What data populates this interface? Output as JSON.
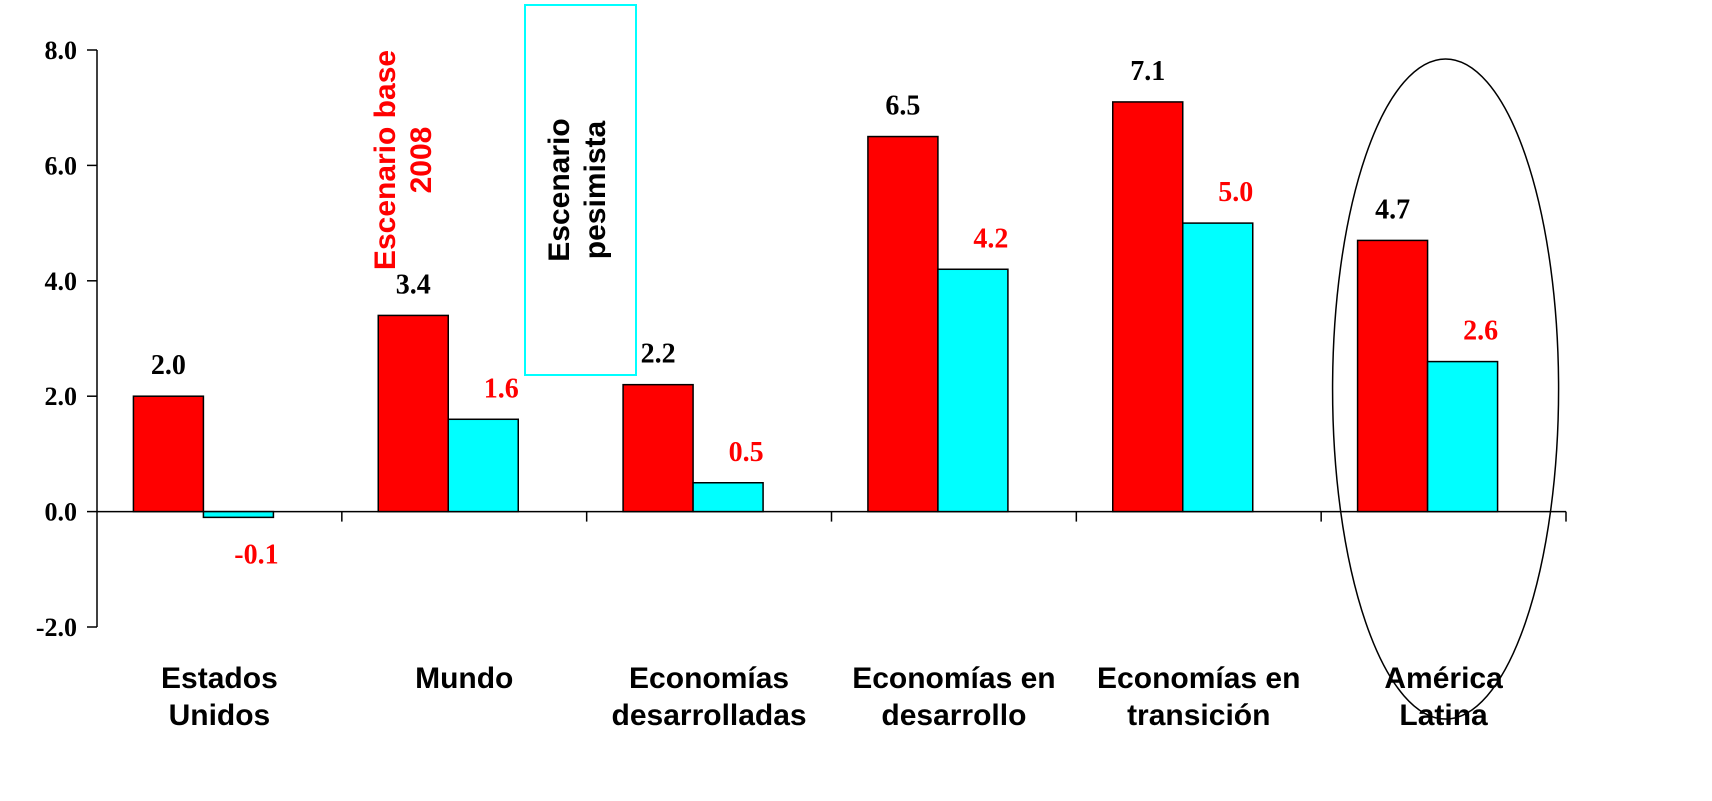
{
  "chart_data": {
    "type": "bar",
    "categories": [
      [
        "Estados",
        "Unidos"
      ],
      [
        "Mundo"
      ],
      [
        "Economías",
        "desarrolladas"
      ],
      [
        "Economías en",
        "desarrollo"
      ],
      [
        "Economías en",
        "transición"
      ],
      [
        "América",
        "Latina"
      ]
    ],
    "series": [
      {
        "name": "Escenario base 2008",
        "legend_lines": [
          "Escenario base",
          "2008"
        ],
        "color": "#ff0000",
        "label_color": "#000000",
        "values": [
          2.0,
          3.4,
          2.2,
          6.5,
          7.1,
          4.7
        ]
      },
      {
        "name": "Escenario pesimista",
        "legend_lines": [
          "Escenario",
          "pesimista"
        ],
        "color": "#00ffff",
        "label_color": "#ff0000",
        "values": [
          -0.1,
          1.6,
          0.5,
          4.2,
          5.0,
          2.6
        ]
      }
    ],
    "ylim": [
      -2.0,
      8.0
    ],
    "yticks": [
      "-2.0",
      "0.0",
      "2.0",
      "4.0",
      "6.0",
      "8.0"
    ],
    "title": "",
    "xlabel": "",
    "ylabel": "",
    "grid": false,
    "highlighted_category": "América Latina",
    "legend_text_colors": [
      "#ff0000",
      "#000000"
    ],
    "legend_box_border": "#00ffff"
  }
}
